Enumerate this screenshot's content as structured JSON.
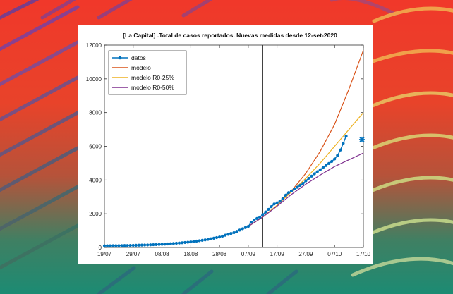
{
  "chart_data": {
    "type": "line",
    "title": "[La Capital] .Total de casos reportados. Nuevas medidas desde 12-set-2020",
    "xlabel": "",
    "ylabel": "",
    "ylim": [
      0,
      12000
    ],
    "xlim": [
      0,
      90
    ],
    "yticks": [
      0,
      2000,
      4000,
      6000,
      8000,
      10000,
      12000
    ],
    "xticks": [
      {
        "day": 0,
        "label": "19/07"
      },
      {
        "day": 10,
        "label": "29/07"
      },
      {
        "day": 20,
        "label": "08/08"
      },
      {
        "day": 30,
        "label": "18/08"
      },
      {
        "day": 40,
        "label": "28/08"
      },
      {
        "day": 50,
        "label": "07/09"
      },
      {
        "day": 60,
        "label": "17/09"
      },
      {
        "day": 70,
        "label": "27/09"
      },
      {
        "day": 80,
        "label": "07/10"
      },
      {
        "day": 90,
        "label": "17/10"
      }
    ],
    "vline_day": 55,
    "legend_position": "top-left",
    "grid": false,
    "series": [
      {
        "name": "modelo",
        "color": "#d95319",
        "style": "line",
        "x": [
          0,
          5,
          10,
          15,
          20,
          25,
          30,
          35,
          40,
          45,
          50,
          55,
          60,
          65,
          70,
          75,
          80,
          85,
          90
        ],
        "y": [
          100,
          110,
          125,
          150,
          190,
          250,
          330,
          450,
          620,
          880,
          1250,
          1800,
          2500,
          3350,
          4400,
          5700,
          7300,
          9400,
          11700
        ]
      },
      {
        "name": "modelo R0-25%",
        "color": "#edb120",
        "style": "line",
        "x": [
          0,
          5,
          10,
          15,
          20,
          25,
          30,
          35,
          40,
          45,
          50,
          55,
          60,
          65,
          70,
          75,
          80,
          85,
          90
        ],
        "y": [
          100,
          110,
          125,
          150,
          190,
          250,
          330,
          450,
          620,
          880,
          1250,
          1800,
          2500,
          3300,
          4100,
          5000,
          6000,
          7000,
          8000
        ]
      },
      {
        "name": "modelo R0-50%",
        "color": "#7e2f8e",
        "style": "line",
        "x": [
          0,
          5,
          10,
          15,
          20,
          25,
          30,
          35,
          40,
          45,
          50,
          55,
          60,
          65,
          70,
          75,
          80,
          85,
          90
        ],
        "y": [
          100,
          110,
          125,
          150,
          190,
          250,
          330,
          450,
          620,
          880,
          1250,
          1800,
          2450,
          3150,
          3750,
          4300,
          4800,
          5200,
          5600
        ]
      },
      {
        "name": "datos",
        "color": "#0072bd",
        "style": "line-marker",
        "x": [
          0,
          1,
          2,
          3,
          4,
          5,
          6,
          7,
          8,
          9,
          10,
          11,
          12,
          13,
          14,
          15,
          16,
          17,
          18,
          19,
          20,
          21,
          22,
          23,
          24,
          25,
          26,
          27,
          28,
          29,
          30,
          31,
          32,
          33,
          34,
          35,
          36,
          37,
          38,
          39,
          40,
          41,
          42,
          43,
          44,
          45,
          46,
          47,
          48,
          49,
          50,
          51,
          52,
          53,
          54,
          55,
          56,
          57,
          58,
          59,
          60,
          61,
          62,
          63,
          64,
          65,
          66,
          67,
          68,
          69,
          70,
          71,
          72,
          73,
          74,
          75,
          76,
          77,
          78,
          79,
          80,
          81,
          82,
          83,
          84
        ],
        "y": [
          100,
          100,
          102,
          104,
          106,
          108,
          110,
          114,
          118,
          122,
          125,
          130,
          135,
          140,
          145,
          150,
          157,
          165,
          172,
          180,
          190,
          200,
          210,
          222,
          236,
          250,
          264,
          280,
          296,
          312,
          330,
          353,
          377,
          400,
          425,
          450,
          480,
          515,
          550,
          585,
          620,
          670,
          725,
          780,
          830,
          880,
          950,
          1030,
          1110,
          1180,
          1250,
          1500,
          1620,
          1720,
          1800,
          1950,
          2100,
          2260,
          2420,
          2580,
          2650,
          2750,
          2900,
          3100,
          3250,
          3350,
          3470,
          3570,
          3680,
          3800,
          3950,
          4100,
          4230,
          4370,
          4490,
          4610,
          4740,
          4860,
          4980,
          5100,
          5250,
          5450,
          5780,
          6170,
          6600
        ]
      }
    ],
    "outlier_marker": {
      "day": 89.5,
      "y": 6400,
      "color": "#0072bd",
      "symbol": "asterisk"
    }
  }
}
